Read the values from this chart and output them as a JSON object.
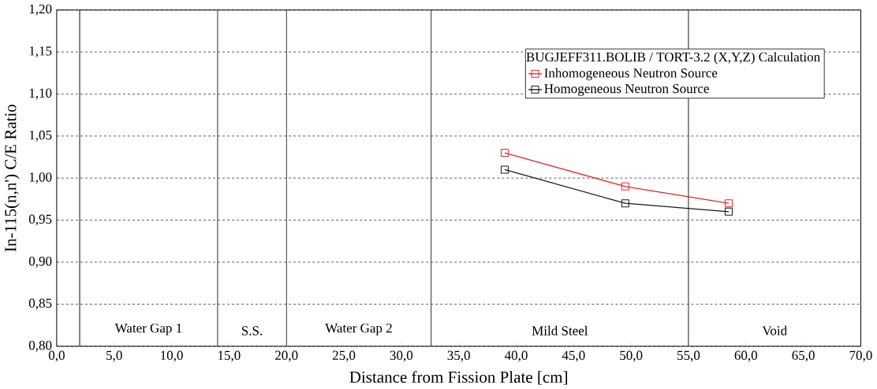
{
  "chart_data": {
    "type": "line",
    "xlabel": "Distance from Fission Plate  [cm]",
    "ylabel": "In-115(n,n') C/E Ratio",
    "legend_title": "BUGJEFF311.BOLIB / TORT-3.2 (X,Y,Z) Calculation",
    "x": [
      39,
      49.5,
      58.5
    ],
    "series": [
      {
        "name": "Inhomogeneous Neutron Source",
        "color": "#e8262a",
        "values": [
          1.03,
          0.99,
          0.97
        ]
      },
      {
        "name": "Homogeneous Neutron Source",
        "color": "#1a1a1a",
        "values": [
          1.01,
          0.97,
          0.96
        ]
      }
    ],
    "xlim": [
      0,
      70
    ],
    "xticks": [
      {
        "value": 0,
        "label": "0,0"
      },
      {
        "value": 5,
        "label": "5,0"
      },
      {
        "value": 10,
        "label": "10,0"
      },
      {
        "value": 15,
        "label": "15,0"
      },
      {
        "value": 20,
        "label": "20,0"
      },
      {
        "value": 25,
        "label": "25,0"
      },
      {
        "value": 30,
        "label": "30,0"
      },
      {
        "value": 35,
        "label": "35,0"
      },
      {
        "value": 40,
        "label": "40,0"
      },
      {
        "value": 45,
        "label": "45,0"
      },
      {
        "value": 50,
        "label": "50,0"
      },
      {
        "value": 55,
        "label": "55,0"
      },
      {
        "value": 60,
        "label": "60,0"
      },
      {
        "value": 65,
        "label": "65,0"
      },
      {
        "value": 70,
        "label": "70,0"
      }
    ],
    "ylim": [
      0.8,
      1.2
    ],
    "yticks": [
      {
        "value": 0.8,
        "label": "0,80"
      },
      {
        "value": 0.85,
        "label": "0,85"
      },
      {
        "value": 0.9,
        "label": "0,90"
      },
      {
        "value": 0.95,
        "label": "0,95"
      },
      {
        "value": 1.0,
        "label": "1,00"
      },
      {
        "value": 1.05,
        "label": "1,05"
      },
      {
        "value": 1.1,
        "label": "1,10"
      },
      {
        "value": 1.15,
        "label": "1,15"
      },
      {
        "value": 1.2,
        "label": "1,20"
      }
    ],
    "ref_lines": [
      {
        "axis": "x",
        "value": 2
      },
      {
        "axis": "x",
        "value": 14
      },
      {
        "axis": "x",
        "value": 20
      },
      {
        "axis": "x",
        "value": 32.6
      },
      {
        "axis": "x",
        "value": 55
      }
    ],
    "annotations": [
      "Water Gap 1",
      "S.S.",
      "Water Gap 2",
      "Mild Steel",
      "Void"
    ],
    "grid": "y",
    "legend": "top right",
    "marker": "square",
    "line_style": "solid"
  }
}
